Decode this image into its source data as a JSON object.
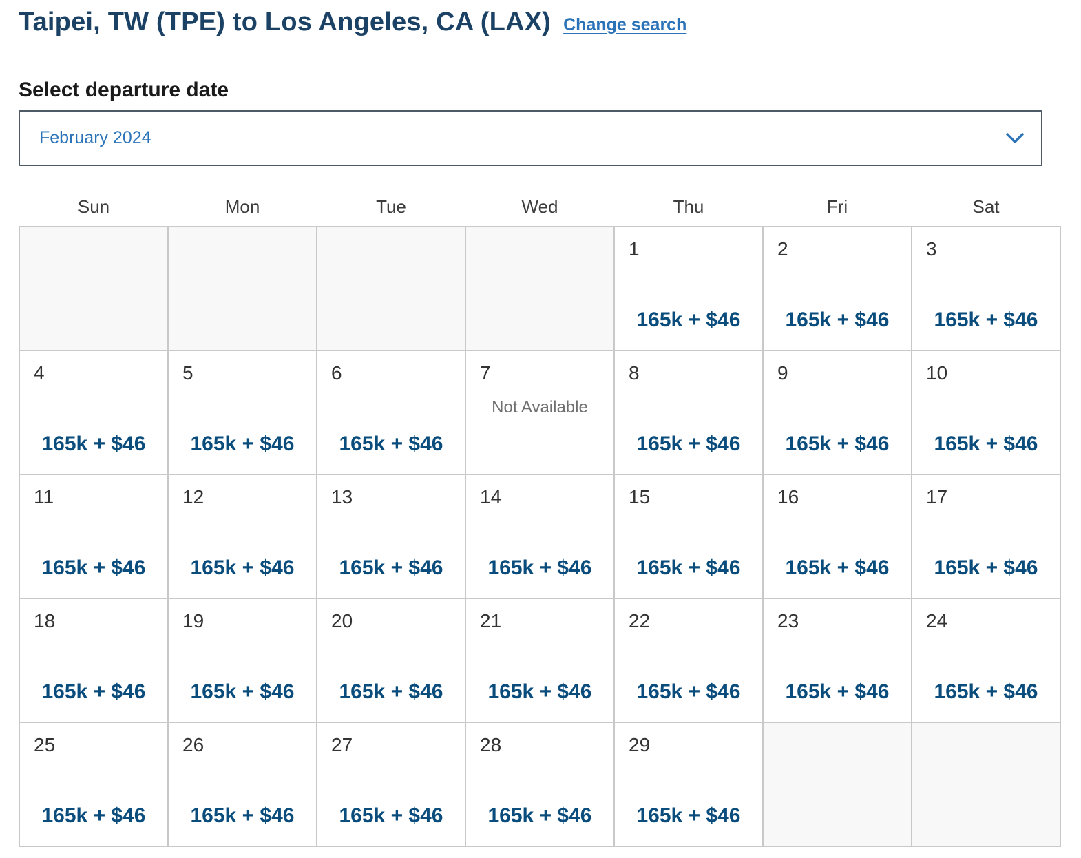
{
  "colors": {
    "title_navy": "#1b4265",
    "link_blue": "#2b73b8",
    "price_blue": "#0a4d7d",
    "heading_black": "#1a1a1a",
    "day_number_gray": "#333333",
    "weekday_gray": "#3d3d3d",
    "not_available_gray": "#6f6f6f",
    "cell_border_gray": "#c9c9c9",
    "empty_cell_bg": "#f8f8f8",
    "dropdown_border": "#4e5a66"
  },
  "header": {
    "title": "Taipei, TW (TPE) to Los Angeles, CA (LAX)",
    "change_search_label": "Change search"
  },
  "departure_date_section": {
    "label": "Select departure date",
    "selected_month": "February 2024",
    "chevron_icon": "chevron-down"
  },
  "calendar": {
    "weekdays": [
      "Sun",
      "Mon",
      "Tue",
      "Wed",
      "Thu",
      "Fri",
      "Sat"
    ],
    "weeks": [
      [
        null,
        null,
        null,
        null,
        {
          "day": "1",
          "price": "165k + $46"
        },
        {
          "day": "2",
          "price": "165k + $46"
        },
        {
          "day": "3",
          "price": "165k + $46"
        }
      ],
      [
        {
          "day": "4",
          "price": "165k + $46"
        },
        {
          "day": "5",
          "price": "165k + $46"
        },
        {
          "day": "6",
          "price": "165k + $46"
        },
        {
          "day": "7",
          "status": "Not Available"
        },
        {
          "day": "8",
          "price": "165k + $46"
        },
        {
          "day": "9",
          "price": "165k + $46"
        },
        {
          "day": "10",
          "price": "165k + $46"
        }
      ],
      [
        {
          "day": "11",
          "price": "165k + $46"
        },
        {
          "day": "12",
          "price": "165k + $46"
        },
        {
          "day": "13",
          "price": "165k + $46"
        },
        {
          "day": "14",
          "price": "165k + $46"
        },
        {
          "day": "15",
          "price": "165k + $46"
        },
        {
          "day": "16",
          "price": "165k + $46"
        },
        {
          "day": "17",
          "price": "165k + $46"
        }
      ],
      [
        {
          "day": "18",
          "price": "165k + $46"
        },
        {
          "day": "19",
          "price": "165k + $46"
        },
        {
          "day": "20",
          "price": "165k + $46"
        },
        {
          "day": "21",
          "price": "165k + $46"
        },
        {
          "day": "22",
          "price": "165k + $46"
        },
        {
          "day": "23",
          "price": "165k + $46"
        },
        {
          "day": "24",
          "price": "165k + $46"
        }
      ],
      [
        {
          "day": "25",
          "price": "165k + $46"
        },
        {
          "day": "26",
          "price": "165k + $46"
        },
        {
          "day": "27",
          "price": "165k + $46"
        },
        {
          "day": "28",
          "price": "165k + $46"
        },
        {
          "day": "29",
          "price": "165k + $46"
        },
        null,
        null
      ]
    ]
  }
}
